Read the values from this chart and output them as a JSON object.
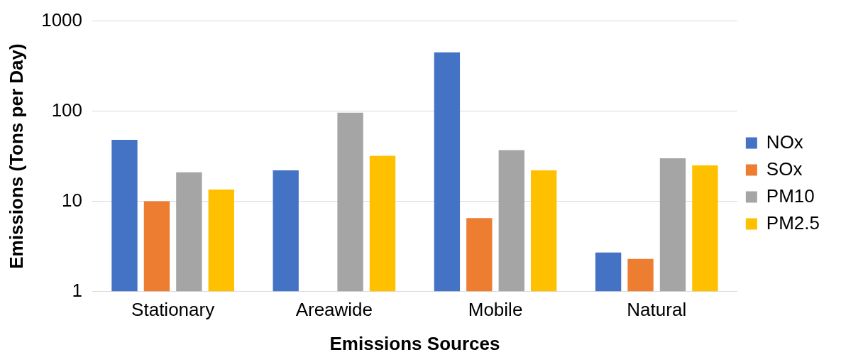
{
  "chart_data": {
    "type": "bar",
    "xlabel": "Emissions Sources",
    "ylabel": "Emissions (Tons per Day)",
    "categories": [
      "Stationary",
      "Areawide",
      "Mobile",
      "Natural"
    ],
    "series": [
      {
        "name": "NOx",
        "color": "#4472c4",
        "values": [
          48,
          22,
          450,
          2.7
        ]
      },
      {
        "name": "SOx",
        "color": "#ed7d31",
        "values": [
          10,
          null,
          6.5,
          2.3
        ]
      },
      {
        "name": "PM10",
        "color": "#a5a5a5",
        "values": [
          21,
          96,
          37,
          30
        ]
      },
      {
        "name": "PM2.5",
        "color": "#ffc000",
        "values": [
          13.5,
          32,
          22,
          25
        ]
      }
    ],
    "log": true,
    "ylim": [
      1,
      1000
    ],
    "yticks": [
      1,
      10,
      100,
      1000
    ],
    "grid": "y",
    "legend": "right"
  }
}
